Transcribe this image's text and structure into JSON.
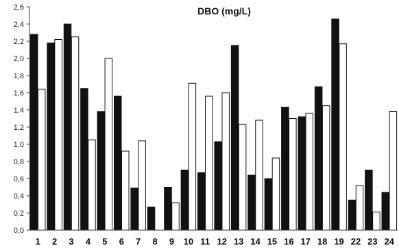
{
  "chart_data": {
    "type": "bar",
    "title": "DBO (mg/L)",
    "xlabel": "",
    "ylabel": "",
    "ylim": [
      0,
      2.6
    ],
    "yticks": [
      "0,0",
      "0,2",
      "0,4",
      "0,6",
      "0,8",
      "1,0",
      "1,2",
      "1,4",
      "1,6",
      "1,8",
      "2,0",
      "2,2",
      "2,4",
      "2,6"
    ],
    "grid": false,
    "legend": "none",
    "categories": [
      "1",
      "2",
      "3",
      "4",
      "5",
      "6",
      "7",
      "8",
      "9",
      "10",
      "11",
      "12",
      "13",
      "14",
      "15",
      "16",
      "17",
      "18",
      "19",
      "22",
      "23",
      "24"
    ],
    "series": [
      {
        "color": "#111111",
        "values": [
          2.28,
          2.18,
          2.4,
          1.65,
          1.38,
          1.56,
          0.49,
          0.27,
          0.5,
          0.7,
          0.67,
          1.03,
          2.15,
          0.64,
          0.6,
          1.43,
          1.32,
          1.67,
          2.46,
          0.35,
          0.7,
          0.44
        ]
      },
      {
        "color": "#ffffff",
        "values": [
          1.64,
          2.22,
          2.25,
          1.05,
          2.0,
          0.92,
          1.04,
          null,
          0.32,
          1.71,
          1.56,
          1.6,
          1.23,
          1.28,
          0.84,
          1.3,
          1.36,
          1.45,
          2.17,
          0.52,
          0.21,
          1.38
        ]
      }
    ]
  }
}
